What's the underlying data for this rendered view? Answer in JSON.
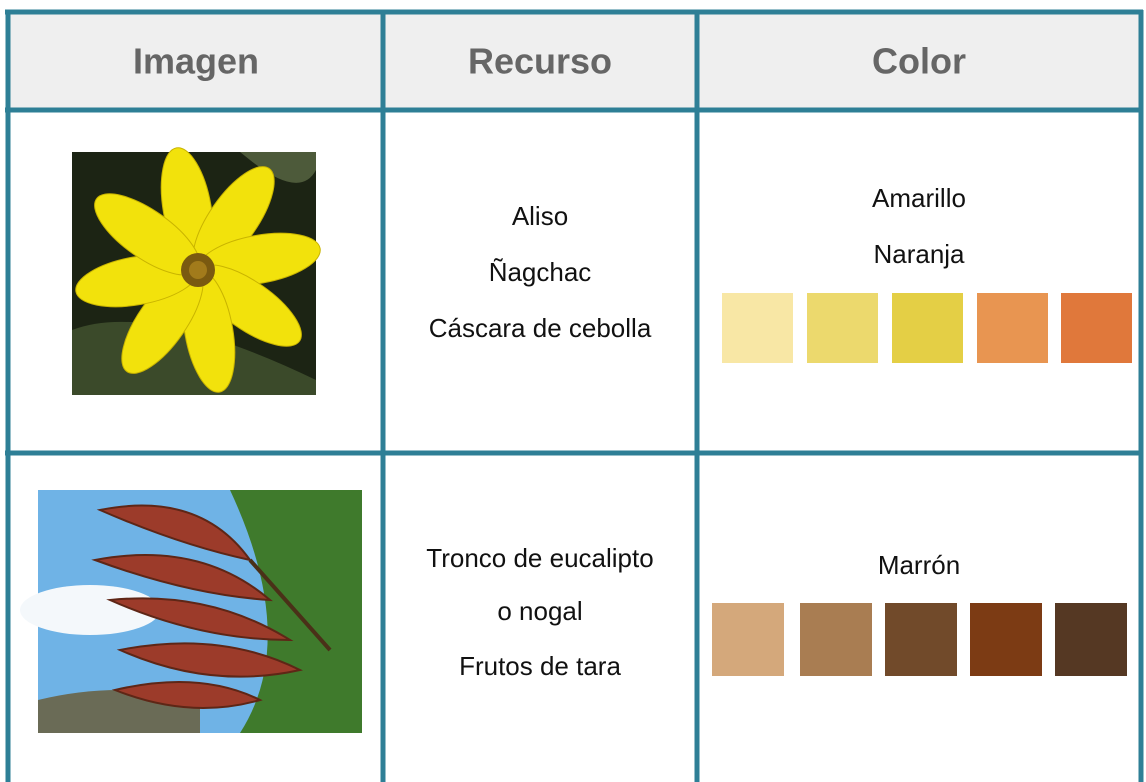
{
  "table": {
    "header": [
      "Imagen",
      "Recurso",
      "Color"
    ],
    "rows": [
      {
        "resource": [
          "Aliso",
          "Ñagchac",
          "Cáscara de cebolla"
        ],
        "colors": [
          "Amarillo",
          "Naranja"
        ],
        "swatches": [
          "#f8e7a5",
          "#ecd96d",
          "#e4cf45",
          "#e89551",
          "#e0783b"
        ]
      },
      {
        "resource": [
          "Tronco de eucalipto",
          "o nogal",
          "Frutos de tara"
        ],
        "colors": [
          "Marrón"
        ],
        "swatches": [
          "#d4a87b",
          "#a97d52",
          "#714a2a",
          "#7c3b14",
          "#553823"
        ]
      }
    ]
  }
}
